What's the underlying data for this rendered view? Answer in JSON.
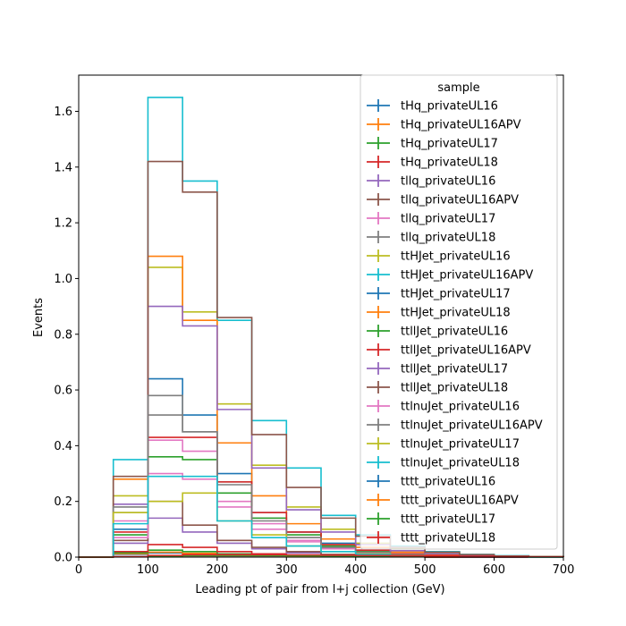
{
  "chart_data": {
    "type": "histogram",
    "title": "",
    "xlabel": "Leading pt of pair from l+j collection (GeV)",
    "ylabel": "Events",
    "xlim": [
      0,
      700
    ],
    "ylim": [
      0,
      1.73
    ],
    "xticks": [
      0,
      100,
      200,
      300,
      400,
      500,
      600,
      700
    ],
    "xtick_labels": [
      "0",
      "100",
      "200",
      "300",
      "400",
      "500",
      "600",
      "700"
    ],
    "yticks": [
      0.0,
      0.2,
      0.4,
      0.6,
      0.8,
      1.0,
      1.2,
      1.4,
      1.6
    ],
    "ytick_labels": [
      "0.0",
      "0.2",
      "0.4",
      "0.6",
      "0.8",
      "1.0",
      "1.2",
      "1.4",
      "1.6"
    ],
    "bin_edges": [
      0,
      50,
      100,
      150,
      200,
      250,
      300,
      350,
      400,
      450,
      500,
      550,
      600,
      650,
      700
    ],
    "grid": false,
    "legend_title": "sample",
    "legend_position": "top-right",
    "series": [
      {
        "name": "tHq_privateUL16",
        "color": "#1f77b4",
        "values": [
          0,
          0.01,
          0.015,
          0.012,
          0.008,
          0.005,
          0.003,
          0.002,
          0.001,
          0.001,
          0.0,
          0.0,
          0.0,
          0.0
        ]
      },
      {
        "name": "tHq_privateUL16APV",
        "color": "#ff7f0e",
        "values": [
          0,
          0.012,
          0.018,
          0.014,
          0.009,
          0.006,
          0.003,
          0.002,
          0.001,
          0.001,
          0.0,
          0.0,
          0.0,
          0.0
        ]
      },
      {
        "name": "tHq_privateUL17",
        "color": "#2ca02c",
        "values": [
          0,
          0.015,
          0.025,
          0.02,
          0.012,
          0.008,
          0.004,
          0.002,
          0.001,
          0.001,
          0.0,
          0.0,
          0.0,
          0.0
        ]
      },
      {
        "name": "tHq_privateUL18",
        "color": "#d62728",
        "values": [
          0,
          0.02,
          0.045,
          0.035,
          0.02,
          0.012,
          0.006,
          0.003,
          0.002,
          0.001,
          0.0,
          0.0,
          0.0,
          0.0
        ]
      },
      {
        "name": "tllq_privateUL16",
        "color": "#9467bd",
        "values": [
          0,
          0.05,
          0.14,
          0.09,
          0.05,
          0.03,
          0.015,
          0.008,
          0.004,
          0.002,
          0.001,
          0.0,
          0.0,
          0.0
        ]
      },
      {
        "name": "tllq_privateUL16APV",
        "color": "#8c564b",
        "values": [
          0,
          0.06,
          0.2,
          0.115,
          0.06,
          0.035,
          0.02,
          0.01,
          0.005,
          0.003,
          0.001,
          0.0,
          0.0,
          0.0
        ]
      },
      {
        "name": "tllq_privateUL17",
        "color": "#e377c2",
        "values": [
          0,
          0.13,
          0.42,
          0.38,
          0.2,
          0.12,
          0.06,
          0.03,
          0.015,
          0.008,
          0.004,
          0.002,
          0.001,
          0.001
        ]
      },
      {
        "name": "tllq_privateUL18",
        "color": "#7f7f7f",
        "values": [
          0,
          0.16,
          0.51,
          0.45,
          0.27,
          0.14,
          0.07,
          0.035,
          0.018,
          0.009,
          0.005,
          0.002,
          0.001,
          0.001
        ]
      },
      {
        "name": "ttHJet_privateUL16",
        "color": "#bcbd22",
        "values": [
          0,
          0.22,
          1.04,
          0.88,
          0.55,
          0.33,
          0.18,
          0.1,
          0.05,
          0.03,
          0.015,
          0.008,
          0.004,
          0.002
        ]
      },
      {
        "name": "ttHJet_privateUL16APV",
        "color": "#17becf",
        "values": [
          0,
          0.35,
          1.65,
          1.35,
          0.85,
          0.49,
          0.32,
          0.15,
          0.08,
          0.04,
          0.02,
          0.01,
          0.005,
          0.002
        ]
      },
      {
        "name": "ttHJet_privateUL17",
        "color": "#1f77b4",
        "values": [
          0,
          0.1,
          0.64,
          0.51,
          0.3,
          0.16,
          0.09,
          0.05,
          0.025,
          0.012,
          0.006,
          0.003,
          0.001,
          0.001
        ]
      },
      {
        "name": "ttHJet_privateUL18",
        "color": "#ff7f0e",
        "values": [
          0,
          0.28,
          1.08,
          0.85,
          0.41,
          0.22,
          0.12,
          0.065,
          0.035,
          0.018,
          0.009,
          0.004,
          0.002,
          0.001
        ]
      },
      {
        "name": "ttllJet_privateUL16",
        "color": "#2ca02c",
        "values": [
          0,
          0.08,
          0.36,
          0.35,
          0.23,
          0.14,
          0.08,
          0.04,
          0.02,
          0.01,
          0.005,
          0.002,
          0.001,
          0.001
        ]
      },
      {
        "name": "ttllJet_privateUL16APV",
        "color": "#d62728",
        "values": [
          0,
          0.09,
          0.43,
          0.43,
          0.27,
          0.16,
          0.09,
          0.045,
          0.025,
          0.012,
          0.006,
          0.003,
          0.001,
          0.001
        ]
      },
      {
        "name": "ttllJet_privateUL17",
        "color": "#9467bd",
        "values": [
          0,
          0.19,
          0.9,
          0.83,
          0.53,
          0.32,
          0.17,
          0.09,
          0.045,
          0.023,
          0.012,
          0.006,
          0.003,
          0.001
        ]
      },
      {
        "name": "ttllJet_privateUL18",
        "color": "#8c564b",
        "values": [
          0,
          0.29,
          1.42,
          1.31,
          0.86,
          0.44,
          0.25,
          0.14,
          0.075,
          0.035,
          0.018,
          0.009,
          0.004,
          0.002
        ]
      },
      {
        "name": "ttlnuJet_privateUL16",
        "color": "#e377c2",
        "values": [
          0,
          0.07,
          0.3,
          0.28,
          0.18,
          0.1,
          0.055,
          0.03,
          0.015,
          0.008,
          0.004,
          0.002,
          0.001,
          0.0
        ]
      },
      {
        "name": "ttlnuJet_privateUL16APV",
        "color": "#7f7f7f",
        "values": [
          0,
          0.18,
          0.58,
          0.45,
          0.26,
          0.13,
          0.07,
          0.035,
          0.018,
          0.009,
          0.004,
          0.002,
          0.001,
          0.0
        ]
      },
      {
        "name": "ttlnuJet_privateUL17",
        "color": "#bcbd22",
        "values": [
          0,
          0.16,
          0.2,
          0.23,
          0.13,
          0.08,
          0.04,
          0.02,
          0.012,
          0.006,
          0.003,
          0.002,
          0.001,
          0.0
        ]
      },
      {
        "name": "ttlnuJet_privateUL18",
        "color": "#17becf",
        "values": [
          0,
          0.12,
          0.29,
          0.29,
          0.13,
          0.07,
          0.04,
          0.02,
          0.01,
          0.005,
          0.003,
          0.002,
          0.001,
          0.0
        ]
      },
      {
        "name": "tttt_privateUL16",
        "color": "#1f77b4",
        "values": [
          0,
          0.001,
          0.003,
          0.004,
          0.004,
          0.004,
          0.004,
          0.003,
          0.003,
          0.002,
          0.002,
          0.001,
          0.001,
          0.001
        ]
      },
      {
        "name": "tttt_privateUL16APV",
        "color": "#ff7f0e",
        "values": [
          0,
          0.001,
          0.003,
          0.005,
          0.005,
          0.005,
          0.004,
          0.004,
          0.003,
          0.003,
          0.002,
          0.002,
          0.001,
          0.001
        ]
      },
      {
        "name": "tttt_privateUL17",
        "color": "#2ca02c",
        "values": [
          0,
          0.001,
          0.004,
          0.006,
          0.006,
          0.006,
          0.005,
          0.004,
          0.004,
          0.003,
          0.002,
          0.002,
          0.001,
          0.001
        ]
      },
      {
        "name": "tttt_privateUL18",
        "color": "#d62728",
        "values": [
          0,
          0.002,
          0.006,
          0.009,
          0.009,
          0.009,
          0.008,
          0.007,
          0.006,
          0.005,
          0.004,
          0.003,
          0.002,
          0.001
        ]
      }
    ]
  }
}
